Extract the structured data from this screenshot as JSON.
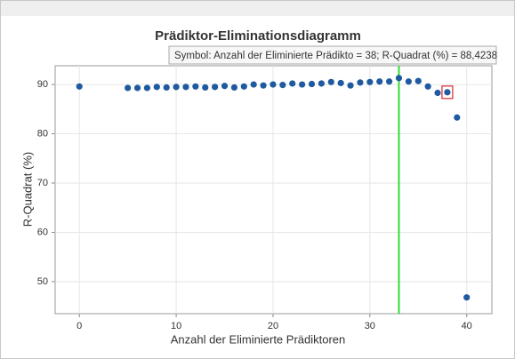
{
  "chart_data": {
    "type": "scatter",
    "title": "Prädiktor-Eliminationsdiagramm",
    "xlabel": "Anzahl der Eliminierte Prädiktoren",
    "ylabel": "R-Quadrat (%)",
    "x": [
      0,
      5,
      6,
      7,
      8,
      9,
      10,
      11,
      12,
      13,
      14,
      15,
      16,
      17,
      18,
      19,
      20,
      21,
      22,
      23,
      24,
      25,
      26,
      27,
      28,
      29,
      30,
      31,
      32,
      33,
      34,
      35,
      36,
      37,
      38,
      39,
      40
    ],
    "values": [
      89.6,
      89.3,
      89.3,
      89.3,
      89.5,
      89.4,
      89.5,
      89.5,
      89.6,
      89.4,
      89.5,
      89.7,
      89.4,
      89.6,
      90.0,
      89.8,
      90.0,
      89.9,
      90.2,
      90.0,
      90.1,
      90.2,
      90.5,
      90.3,
      89.8,
      90.4,
      90.5,
      90.6,
      90.6,
      91.3,
      90.6,
      90.7,
      89.6,
      88.3,
      88.4238,
      83.3,
      46.8
    ],
    "color": "#1f5aa0",
    "xlim": [
      -2.5,
      42.6
    ],
    "ylim": [
      43.5,
      93.8
    ],
    "xticks": [
      0,
      10,
      20,
      30,
      40
    ],
    "yticks": [
      50,
      60,
      70,
      80,
      90
    ],
    "grid": true,
    "vline": {
      "value": 33,
      "color": "#33dd33"
    },
    "highlight_x": 38,
    "tooltip": "Symbol: Anzahl der Eliminierte Prädikto = 38; R-Quadrat (%) = 88,4238"
  }
}
